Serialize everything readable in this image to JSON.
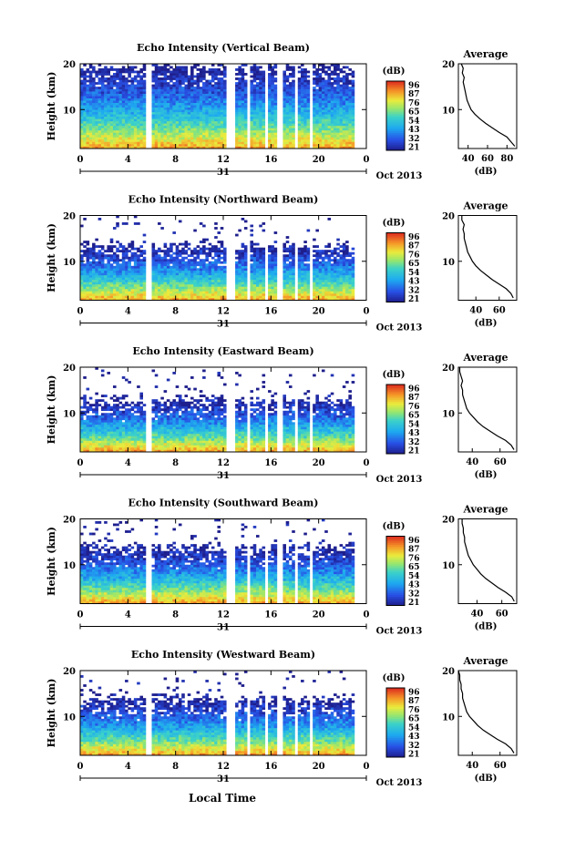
{
  "figure": {
    "x_axis_title": "Local Time",
    "date_day": "31",
    "date_month": "Oct 2013",
    "colorbar_unit": "(dB)",
    "profile_title": "Average",
    "profile_xlabel": "(dB)"
  },
  "chart_data": [
    {
      "type": "heatmap",
      "title": "Echo Intensity (Vertical Beam)",
      "ylabel": "Height (km)",
      "xlim": [
        0,
        24
      ],
      "ylim": [
        1.5,
        20
      ],
      "xticks": [
        "0",
        "4",
        "8",
        "12",
        "16",
        "20",
        "0"
      ],
      "yticks": [
        "10",
        "20"
      ],
      "colorbar_ticks": [
        "96",
        "87",
        "76",
        "65",
        "54",
        "43",
        "32",
        "21"
      ],
      "colorbar_range": [
        21,
        96
      ],
      "echo_top_km": 19.5,
      "data_gaps_h": [
        [
          5.5,
          5.9
        ],
        [
          12.3,
          12.9
        ],
        [
          14.0,
          14.3
        ],
        [
          15.5,
          15.8
        ],
        [
          16.6,
          17.0
        ],
        [
          18.0,
          18.3
        ],
        [
          19.2,
          19.5
        ],
        [
          23.0,
          24.0
        ]
      ],
      "profile": {
        "xlim": [
          30,
          90
        ],
        "xticks": [
          "40",
          "60",
          "80"
        ],
        "yticks": [
          "10",
          "20"
        ],
        "points": [
          [
            88,
            2
          ],
          [
            84,
            3
          ],
          [
            80,
            4
          ],
          [
            72,
            5
          ],
          [
            65,
            6
          ],
          [
            58,
            7
          ],
          [
            52,
            8
          ],
          [
            47,
            9
          ],
          [
            43,
            10
          ],
          [
            41,
            11
          ],
          [
            39,
            12
          ],
          [
            38,
            13
          ],
          [
            37,
            14
          ],
          [
            36,
            15
          ],
          [
            35,
            16
          ],
          [
            36,
            17
          ],
          [
            34,
            18
          ],
          [
            35,
            19
          ],
          [
            33,
            20
          ]
        ]
      }
    },
    {
      "type": "heatmap",
      "title": "Echo Intensity (Northward Beam)",
      "ylabel": "Height (km)",
      "xlim": [
        0,
        24
      ],
      "ylim": [
        1.5,
        20
      ],
      "xticks": [
        "0",
        "4",
        "8",
        "12",
        "16",
        "20",
        "0"
      ],
      "yticks": [
        "10",
        "20"
      ],
      "colorbar_ticks": [
        "96",
        "87",
        "76",
        "65",
        "54",
        "43",
        "32",
        "21"
      ],
      "colorbar_range": [
        21,
        96
      ],
      "echo_top_km": 13.5,
      "data_gaps_h": [
        [
          5.5,
          5.9
        ],
        [
          12.3,
          12.9
        ],
        [
          14.0,
          14.3
        ],
        [
          15.5,
          15.8
        ],
        [
          16.6,
          17.0
        ],
        [
          18.0,
          18.3
        ],
        [
          19.2,
          19.5
        ],
        [
          23.0,
          24.0
        ]
      ],
      "profile": {
        "xlim": [
          25,
          75
        ],
        "xticks": [
          "40",
          "60"
        ],
        "yticks": [
          "10",
          "20"
        ],
        "points": [
          [
            72,
            2
          ],
          [
            70,
            3
          ],
          [
            66,
            4
          ],
          [
            60,
            5
          ],
          [
            54,
            6
          ],
          [
            49,
            7
          ],
          [
            44,
            8
          ],
          [
            40,
            9
          ],
          [
            37,
            10
          ],
          [
            35,
            11
          ],
          [
            33,
            12
          ],
          [
            32,
            13
          ],
          [
            31,
            14
          ],
          [
            30,
            15
          ],
          [
            30,
            16
          ],
          [
            29,
            17
          ],
          [
            30,
            18
          ],
          [
            28,
            19
          ],
          [
            28,
            20
          ]
        ]
      }
    },
    {
      "type": "heatmap",
      "title": "Echo Intensity (Eastward Beam)",
      "ylabel": "Height (km)",
      "xlim": [
        0,
        24
      ],
      "ylim": [
        1.5,
        20
      ],
      "xticks": [
        "0",
        "4",
        "8",
        "12",
        "16",
        "20",
        "0"
      ],
      "yticks": [
        "10",
        "20"
      ],
      "colorbar_ticks": [
        "96",
        "87",
        "76",
        "65",
        "54",
        "43",
        "32",
        "21"
      ],
      "colorbar_range": [
        21,
        96
      ],
      "echo_top_km": 13.0,
      "data_gaps_h": [
        [
          5.5,
          5.9
        ],
        [
          12.3,
          12.9
        ],
        [
          14.0,
          14.3
        ],
        [
          15.5,
          15.8
        ],
        [
          16.6,
          17.0
        ],
        [
          18.0,
          18.3
        ],
        [
          19.2,
          19.5
        ],
        [
          23.0,
          24.0
        ]
      ],
      "profile": {
        "xlim": [
          30,
          72
        ],
        "xticks": [
          "40",
          "60"
        ],
        "yticks": [
          "10",
          "20"
        ],
        "points": [
          [
            70,
            2
          ],
          [
            68,
            3
          ],
          [
            64,
            4
          ],
          [
            58,
            5
          ],
          [
            53,
            6
          ],
          [
            48,
            7
          ],
          [
            44,
            8
          ],
          [
            41,
            9
          ],
          [
            38,
            10
          ],
          [
            36,
            11
          ],
          [
            35,
            12
          ],
          [
            34,
            13
          ],
          [
            33,
            14
          ],
          [
            33,
            15
          ],
          [
            32,
            16
          ],
          [
            33,
            17
          ],
          [
            32,
            18
          ],
          [
            31,
            19
          ],
          [
            31,
            20
          ]
        ]
      }
    },
    {
      "type": "heatmap",
      "title": "Echo Intensity (Southward Beam)",
      "ylabel": "Height (km)",
      "xlim": [
        0,
        24
      ],
      "ylim": [
        1.5,
        20
      ],
      "xticks": [
        "0",
        "4",
        "8",
        "12",
        "16",
        "20",
        "0"
      ],
      "yticks": [
        "10",
        "20"
      ],
      "colorbar_ticks": [
        "96",
        "87",
        "76",
        "65",
        "54",
        "43",
        "32",
        "21"
      ],
      "colorbar_range": [
        21,
        96
      ],
      "echo_top_km": 14.0,
      "data_gaps_h": [
        [
          5.5,
          5.9
        ],
        [
          12.3,
          12.9
        ],
        [
          14.0,
          14.3
        ],
        [
          15.5,
          15.8
        ],
        [
          16.6,
          17.0
        ],
        [
          18.0,
          18.3
        ],
        [
          19.2,
          19.5
        ],
        [
          23.0,
          24.0
        ]
      ],
      "profile": {
        "xlim": [
          25,
          72
        ],
        "xticks": [
          "40",
          "60"
        ],
        "yticks": [
          "10",
          "20"
        ],
        "points": [
          [
            70,
            2
          ],
          [
            68,
            3
          ],
          [
            63,
            4
          ],
          [
            57,
            5
          ],
          [
            52,
            6
          ],
          [
            47,
            7
          ],
          [
            43,
            8
          ],
          [
            40,
            9
          ],
          [
            37,
            10
          ],
          [
            35,
            11
          ],
          [
            33,
            12
          ],
          [
            32,
            13
          ],
          [
            31,
            14
          ],
          [
            30,
            15
          ],
          [
            30,
            16
          ],
          [
            29,
            17
          ],
          [
            29,
            18
          ],
          [
            28,
            19
          ],
          [
            28,
            20
          ]
        ]
      }
    },
    {
      "type": "heatmap",
      "title": "Echo Intensity (Westward Beam)",
      "ylabel": "Height (km)",
      "xlim": [
        0,
        24
      ],
      "ylim": [
        1.5,
        20
      ],
      "xticks": [
        "0",
        "4",
        "8",
        "12",
        "16",
        "20",
        "0"
      ],
      "yticks": [
        "10",
        "20"
      ],
      "colorbar_ticks": [
        "96",
        "87",
        "76",
        "65",
        "54",
        "43",
        "32",
        "21"
      ],
      "colorbar_range": [
        21,
        96
      ],
      "echo_top_km": 14.0,
      "data_gaps_h": [
        [
          5.5,
          5.9
        ],
        [
          12.3,
          12.9
        ],
        [
          14.0,
          14.3
        ],
        [
          15.5,
          15.8
        ],
        [
          16.6,
          17.0
        ],
        [
          18.0,
          18.3
        ],
        [
          19.2,
          19.5
        ],
        [
          23.0,
          24.0
        ]
      ],
      "profile": {
        "xlim": [
          30,
          72
        ],
        "xticks": [
          "40",
          "60"
        ],
        "yticks": [
          "10",
          "20"
        ],
        "points": [
          [
            70,
            2
          ],
          [
            68,
            3
          ],
          [
            64,
            4
          ],
          [
            58,
            5
          ],
          [
            53,
            6
          ],
          [
            48,
            7
          ],
          [
            44,
            8
          ],
          [
            41,
            9
          ],
          [
            38,
            10
          ],
          [
            36,
            11
          ],
          [
            35,
            12
          ],
          [
            34,
            13
          ],
          [
            33,
            14
          ],
          [
            33,
            15
          ],
          [
            32,
            16
          ],
          [
            32,
            17
          ],
          [
            31,
            18
          ],
          [
            31,
            19
          ],
          [
            30,
            20
          ]
        ]
      }
    }
  ]
}
